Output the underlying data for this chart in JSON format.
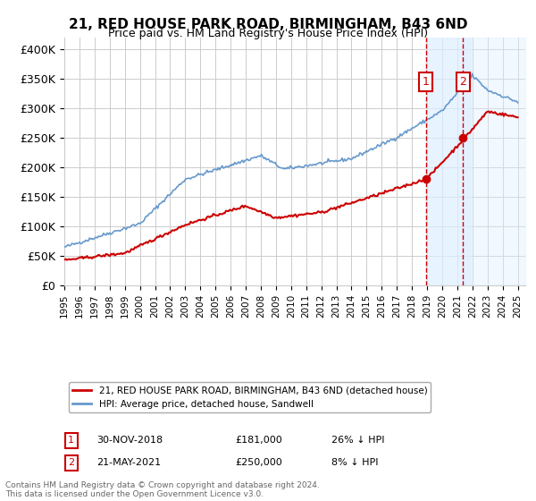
{
  "title": "21, RED HOUSE PARK ROAD, BIRMINGHAM, B43 6ND",
  "subtitle": "Price paid vs. HM Land Registry's House Price Index (HPI)",
  "ylabel_ticks": [
    "£0",
    "£50K",
    "£100K",
    "£150K",
    "£200K",
    "£250K",
    "£300K",
    "£350K",
    "£400K"
  ],
  "ytick_values": [
    0,
    50000,
    100000,
    150000,
    200000,
    250000,
    300000,
    350000,
    400000
  ],
  "ylim": [
    0,
    420000
  ],
  "xlim_start": 1995.0,
  "xlim_end": 2025.5,
  "sale1_date": 2018.92,
  "sale1_price": 181000,
  "sale1_label": "1",
  "sale2_date": 2021.38,
  "sale2_price": 250000,
  "sale2_label": "2",
  "legend_line1": "21, RED HOUSE PARK ROAD, BIRMINGHAM, B43 6ND (detached house)",
  "legend_line2": "HPI: Average price, detached house, Sandwell",
  "sale1_info_num": "1",
  "sale1_info_date": "30-NOV-2018",
  "sale1_info_price": "£181,000",
  "sale1_info_pct": "26% ↓ HPI",
  "sale2_info_num": "2",
  "sale2_info_date": "21-MAY-2021",
  "sale2_info_price": "£250,000",
  "sale2_info_pct": "8% ↓ HPI",
  "footnote": "Contains HM Land Registry data © Crown copyright and database right 2024.\nThis data is licensed under the Open Government Licence v3.0.",
  "line_color_red": "#cc0000",
  "line_color_blue": "#6699cc",
  "shade_color": "#ddeeff",
  "grid_color": "#cccccc",
  "background_color": "#ffffff",
  "sale_box_color": "#cc0000"
}
